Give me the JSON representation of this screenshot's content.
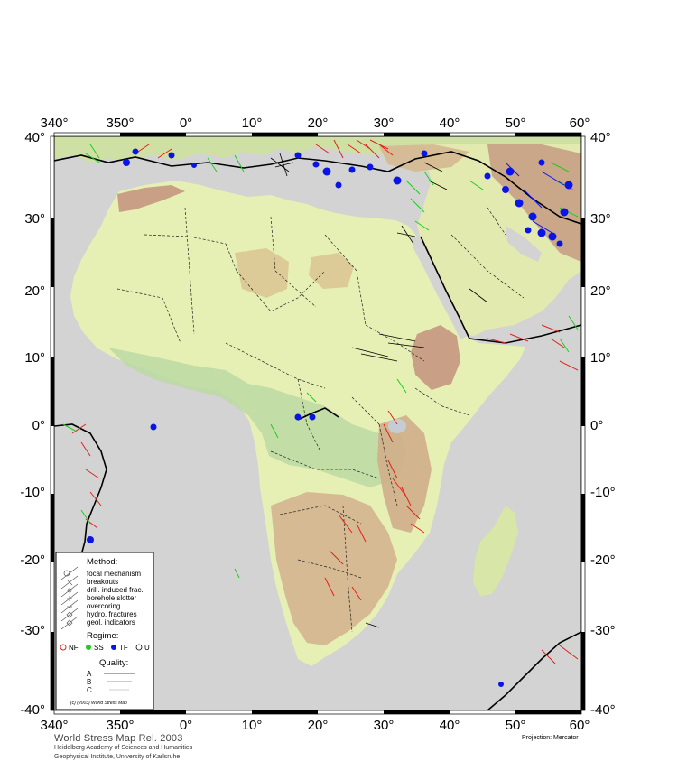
{
  "map": {
    "projection_label": "Projection: Mercator",
    "top_lon_labels": [
      "340°",
      "350°",
      "0°",
      "10°",
      "20°",
      "30°",
      "40°",
      "50°",
      "60°"
    ],
    "bottom_lon_labels": [
      "340°",
      "350°",
      "0°",
      "10°",
      "20°",
      "30°",
      "40°",
      "50°",
      "60°"
    ],
    "left_lat_labels": [
      "40°",
      "30°",
      "20°",
      "10°",
      "0°",
      "-10°",
      "-20°",
      "-30°",
      "-40°"
    ],
    "right_lat_labels": [
      "40°",
      "30°",
      "20°",
      "10°",
      "0°",
      "-10°",
      "-20°",
      "-30°",
      "-40°"
    ],
    "colors": {
      "ocean": "#d3d3d3",
      "lowland": "#e6f0b4",
      "green_land": "#bcd9a3",
      "highland": "#d9b68f",
      "high_mountain": "#c9a085",
      "nf": "#e1231b",
      "ss": "#1ecc1e",
      "tf": "#0a14e6",
      "u": "#000000"
    }
  },
  "legend": {
    "method_title": "Method:",
    "methods": [
      "focal mechanism",
      "breakouts",
      "drill. induced frac.",
      "borehole slotter",
      "overcoring",
      "hydro. fractures",
      "geol. indicators"
    ],
    "regime_title": "Regime:",
    "regimes": [
      "NF",
      "SS",
      "TF",
      "U"
    ],
    "quality_title": "Quality:",
    "qualities": [
      "A",
      "B",
      "C"
    ],
    "copyright": "(c) (2003) World Stress Map"
  },
  "footer": {
    "title": "World Stress Map Rel. 2003",
    "line1": "Heidelberg Academy of Sciences and Humanities",
    "line2": "Geophysical Institute, University of Karlsruhe"
  }
}
